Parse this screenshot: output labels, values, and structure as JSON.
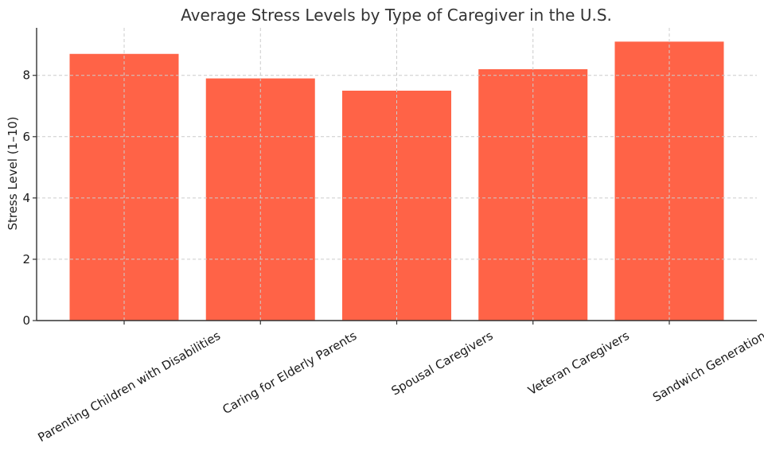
{
  "chart_data": {
    "type": "bar",
    "title": "Average Stress Levels by Type of Caregiver in the U.S.",
    "xlabel": "",
    "ylabel": "Stress Level (1–10)",
    "categories": [
      "Parenting Children with Disabilities",
      "Caring for Elderly Parents",
      "Spousal Caregivers",
      "Veteran Caregivers",
      "Sandwich Generation"
    ],
    "values": [
      8.7,
      7.9,
      7.5,
      8.2,
      9.1
    ],
    "yticks": [
      0,
      2,
      4,
      6,
      8
    ],
    "ylim": [
      0,
      9.55
    ],
    "grid": true,
    "bar_color": "#ff6347"
  }
}
